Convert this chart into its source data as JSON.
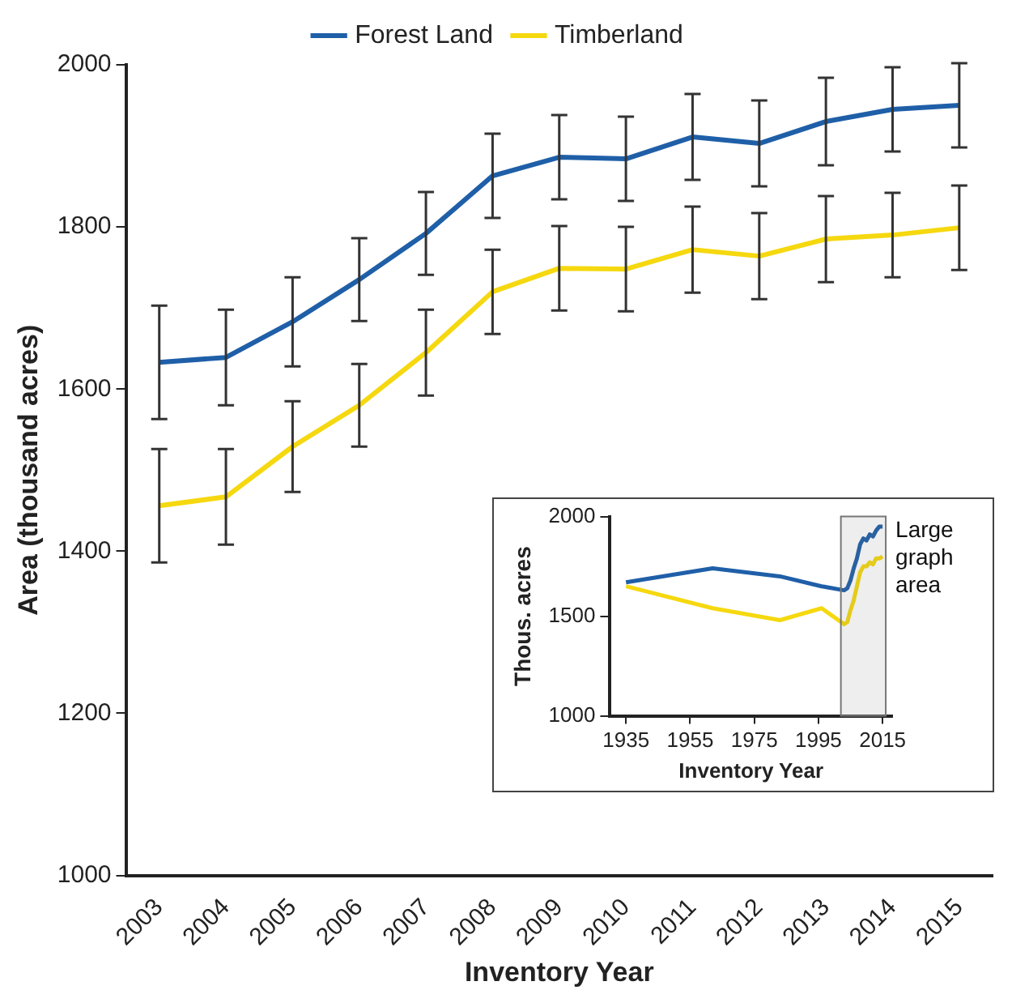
{
  "chart_data": [
    {
      "type": "line",
      "xlabel": "Inventory Year",
      "ylabel": "Area (thousand acres)",
      "categories": [
        "2003",
        "2004",
        "2005",
        "2006",
        "2007",
        "2008",
        "2009",
        "2010",
        "2011",
        "2012",
        "2013",
        "2014",
        "2015"
      ],
      "series": [
        {
          "name": "Forest Land",
          "color": "#1f5fa8",
          "values": [
            1633,
            1639,
            1683,
            1735,
            1792,
            1863,
            1886,
            1884,
            1911,
            1903,
            1930,
            1945,
            1950
          ],
          "errors": [
            70,
            59,
            55,
            51,
            51,
            52,
            52,
            52,
            53,
            53,
            54,
            52,
            52
          ]
        },
        {
          "name": "Timberland",
          "color": "#f5d80f",
          "values": [
            1456,
            1467,
            1529,
            1580,
            1645,
            1720,
            1749,
            1748,
            1772,
            1764,
            1785,
            1790,
            1799
          ],
          "errors": [
            70,
            59,
            56,
            51,
            53,
            52,
            52,
            52,
            53,
            53,
            53,
            52,
            52
          ]
        }
      ],
      "ylim": [
        1000,
        2000
      ],
      "yticks": [
        1000,
        1200,
        1400,
        1600,
        1800,
        2000
      ],
      "legend": "top",
      "marker": "none"
    },
    {
      "type": "line",
      "xlabel": "Inventory Year",
      "ylabel": "Thous. acres",
      "x": [
        1935,
        1962,
        1983,
        1996,
        2003,
        2004,
        2005,
        2006,
        2007,
        2008,
        2009,
        2010,
        2011,
        2012,
        2013,
        2014,
        2015
      ],
      "series": [
        {
          "color": "#1f5fa8",
          "values": [
            1670,
            1740,
            1700,
            1650,
            1630,
            1640,
            1680,
            1740,
            1790,
            1860,
            1890,
            1880,
            1910,
            1900,
            1930,
            1950,
            1950
          ]
        },
        {
          "color": "#f5d80f",
          "values": [
            1650,
            1540,
            1480,
            1540,
            1460,
            1470,
            1530,
            1580,
            1650,
            1720,
            1750,
            1750,
            1770,
            1760,
            1790,
            1790,
            1800
          ]
        }
      ],
      "xlim": [
        1930,
        2018
      ],
      "xticks": [
        1935,
        1955,
        1975,
        1995,
        2015
      ],
      "ylim": [
        1000,
        2000
      ],
      "yticks": [
        1000,
        1500,
        2000
      ],
      "marker": "none",
      "bands": [
        {
          "axis": "x",
          "from": 2002,
          "to": 2016,
          "label": "Large graph area",
          "color": "#777777"
        }
      ]
    }
  ]
}
